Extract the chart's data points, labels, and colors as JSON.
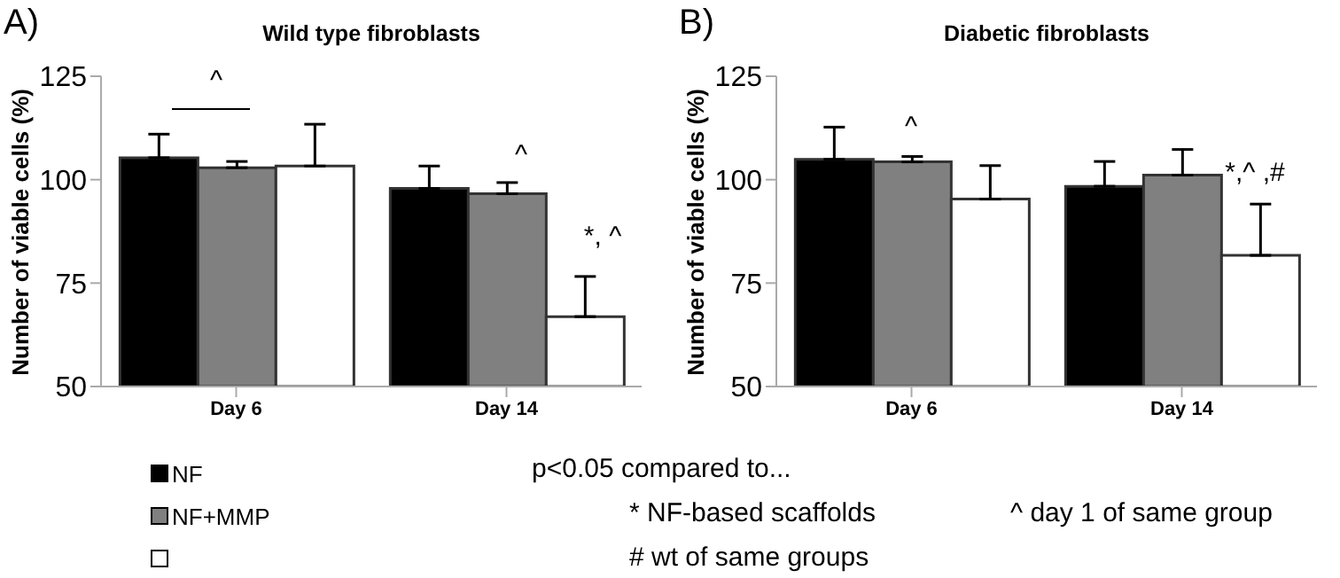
{
  "chart_data": [
    {
      "type": "bar",
      "title": "Wild type fibroblasts",
      "ylabel": "Number of viable cells (%)",
      "categories": [
        "Day 6",
        "Day 14"
      ],
      "ylim": [
        50,
        125
      ],
      "yticks": [
        50,
        75,
        100,
        125
      ],
      "grid": false,
      "legend": "bottom",
      "annotations": [
        "A)",
        "^",
        "^",
        "*, ^"
      ],
      "series": [
        {
          "name": "NF",
          "color": "#000000",
          "values": [
            105.3,
            97.9
          ],
          "errors": [
            [
              105.3,
              111.0
            ],
            [
              97.9,
              103.3
            ]
          ]
        },
        {
          "name": "NF+MMP",
          "color": "#808080",
          "values": [
            102.9,
            96.6
          ],
          "errors": [
            [
              102.9,
              104.4
            ],
            [
              96.6,
              99.3
            ]
          ]
        },
        {
          "color": "#ffffff",
          "values": [
            103.3,
            66.9
          ],
          "errors": [
            [
              103.3,
              113.4
            ],
            [
              66.9,
              76.6
            ]
          ]
        }
      ]
    },
    {
      "type": "bar",
      "title": "Diabetic fibroblasts",
      "ylabel": "Number of viable cells (%)",
      "categories": [
        "Day 6",
        "Day 14"
      ],
      "ylim": [
        50,
        125
      ],
      "yticks": [
        50,
        75,
        100,
        125
      ],
      "grid": false,
      "annotations": [
        "B)",
        "p<0.05 compared to...",
        "* NF-based scaffolds",
        "^ day 1 of same group",
        "# wt of same groups",
        "^",
        "*,^ ,#"
      ],
      "series": [
        {
          "color": "#000000",
          "values": [
            104.9,
            98.4
          ],
          "errors": [
            [
              104.9,
              112.7
            ],
            [
              98.4,
              104.4
            ]
          ]
        },
        {
          "color": "#808080",
          "values": [
            104.3,
            101.1
          ],
          "errors": [
            [
              104.3,
              105.6
            ],
            [
              101.1,
              107.3
            ]
          ]
        },
        {
          "color": "#ffffff",
          "values": [
            95.3,
            81.7
          ],
          "errors": [
            [
              95.3,
              103.4
            ],
            [
              81.7,
              94.1
            ]
          ]
        }
      ]
    }
  ]
}
